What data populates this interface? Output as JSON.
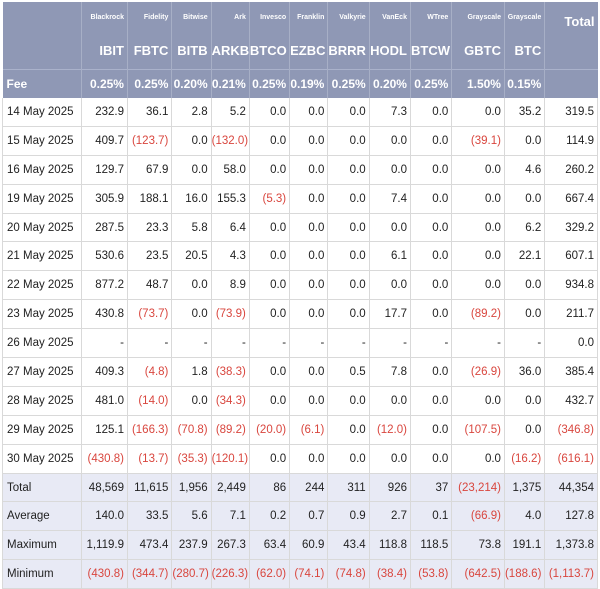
{
  "header": {
    "issuers": [
      "Blackrock",
      "Fidelity",
      "Bitwise",
      "Ark",
      "Invesco",
      "Franklin",
      "Valkyrie",
      "VanEck",
      "WTree",
      "Grayscale",
      "Grayscale"
    ],
    "total_label": "Total",
    "tickers": [
      "IBIT",
      "FBTC",
      "BITB",
      "ARKB",
      "BTCO",
      "EZBC",
      "BRRR",
      "HODL",
      "BTCW",
      "GBTC",
      "BTC"
    ],
    "fee_label": "Fee",
    "fees": [
      "0.25%",
      "0.25%",
      "0.20%",
      "0.21%",
      "0.25%",
      "0.19%",
      "0.25%",
      "0.20%",
      "0.25%",
      "1.50%",
      "0.15%"
    ]
  },
  "rows": [
    {
      "label": "14 May 2025",
      "cells": [
        "232.9",
        "36.1",
        "2.8",
        "5.2",
        "0.0",
        "0.0",
        "0.0",
        "7.3",
        "0.0",
        "0.0",
        "35.2",
        "319.5"
      ]
    },
    {
      "label": "15 May 2025",
      "cells": [
        "409.7",
        "(123.7)",
        "0.0",
        "(132.0)",
        "0.0",
        "0.0",
        "0.0",
        "0.0",
        "0.0",
        "(39.1)",
        "0.0",
        "114.9"
      ]
    },
    {
      "label": "16 May 2025",
      "cells": [
        "129.7",
        "67.9",
        "0.0",
        "58.0",
        "0.0",
        "0.0",
        "0.0",
        "0.0",
        "0.0",
        "0.0",
        "4.6",
        "260.2"
      ]
    },
    {
      "label": "19 May 2025",
      "cells": [
        "305.9",
        "188.1",
        "16.0",
        "155.3",
        "(5.3)",
        "0.0",
        "0.0",
        "7.4",
        "0.0",
        "0.0",
        "0.0",
        "667.4"
      ]
    },
    {
      "label": "20 May 2025",
      "cells": [
        "287.5",
        "23.3",
        "5.8",
        "6.4",
        "0.0",
        "0.0",
        "0.0",
        "0.0",
        "0.0",
        "0.0",
        "6.2",
        "329.2"
      ]
    },
    {
      "label": "21 May 2025",
      "cells": [
        "530.6",
        "23.5",
        "20.5",
        "4.3",
        "0.0",
        "0.0",
        "0.0",
        "6.1",
        "0.0",
        "0.0",
        "22.1",
        "607.1"
      ]
    },
    {
      "label": "22 May 2025",
      "cells": [
        "877.2",
        "48.7",
        "0.0",
        "8.9",
        "0.0",
        "0.0",
        "0.0",
        "0.0",
        "0.0",
        "0.0",
        "0.0",
        "934.8"
      ]
    },
    {
      "label": "23 May 2025",
      "cells": [
        "430.8",
        "(73.7)",
        "0.0",
        "(73.9)",
        "0.0",
        "0.0",
        "0.0",
        "17.7",
        "0.0",
        "(89.2)",
        "0.0",
        "211.7"
      ]
    },
    {
      "label": "26 May 2025",
      "cells": [
        "-",
        "-",
        "-",
        "-",
        "-",
        "-",
        "-",
        "-",
        "-",
        "-",
        "-",
        "0.0"
      ]
    },
    {
      "label": "27 May 2025",
      "cells": [
        "409.3",
        "(4.8)",
        "1.8",
        "(38.3)",
        "0.0",
        "0.0",
        "0.5",
        "7.8",
        "0.0",
        "(26.9)",
        "36.0",
        "385.4"
      ]
    },
    {
      "label": "28 May 2025",
      "cells": [
        "481.0",
        "(14.0)",
        "0.0",
        "(34.3)",
        "0.0",
        "0.0",
        "0.0",
        "0.0",
        "0.0",
        "0.0",
        "0.0",
        "432.7"
      ]
    },
    {
      "label": "29 May 2025",
      "cells": [
        "125.1",
        "(166.3)",
        "(70.8)",
        "(89.2)",
        "(20.0)",
        "(6.1)",
        "0.0",
        "(12.0)",
        "0.0",
        "(107.5)",
        "0.0",
        "(346.8)"
      ]
    },
    {
      "label": "30 May 2025",
      "cells": [
        "(430.8)",
        "(13.7)",
        "(35.3)",
        "(120.1)",
        "0.0",
        "0.0",
        "0.0",
        "0.0",
        "0.0",
        "0.0",
        "(16.2)",
        "(616.1)"
      ]
    }
  ],
  "summary": [
    {
      "label": "Total",
      "cells": [
        "48,569",
        "11,615",
        "1,956",
        "2,449",
        "86",
        "244",
        "311",
        "926",
        "37",
        "(23,214)",
        "1,375",
        "44,354"
      ]
    },
    {
      "label": "Average",
      "cells": [
        "140.0",
        "33.5",
        "5.6",
        "7.1",
        "0.2",
        "0.7",
        "0.9",
        "2.7",
        "0.1",
        "(66.9)",
        "4.0",
        "127.8"
      ]
    },
    {
      "label": "Maximum",
      "cells": [
        "1,119.9",
        "473.4",
        "237.9",
        "267.3",
        "63.4",
        "60.9",
        "43.4",
        "118.8",
        "118.5",
        "73.8",
        "191.1",
        "1,373.8"
      ]
    },
    {
      "label": "Minimum",
      "cells": [
        "(430.8)",
        "(344.7)",
        "(280.7)",
        "(226.3)",
        "(62.0)",
        "(74.1)",
        "(74.8)",
        "(38.4)",
        "(53.8)",
        "(642.5)",
        "(188.6)",
        "(1,113.7)"
      ]
    }
  ],
  "colors": {
    "header_bg": "#8f98b5",
    "summary_bg": "#e8eaf5",
    "negative": "#d9463e"
  }
}
